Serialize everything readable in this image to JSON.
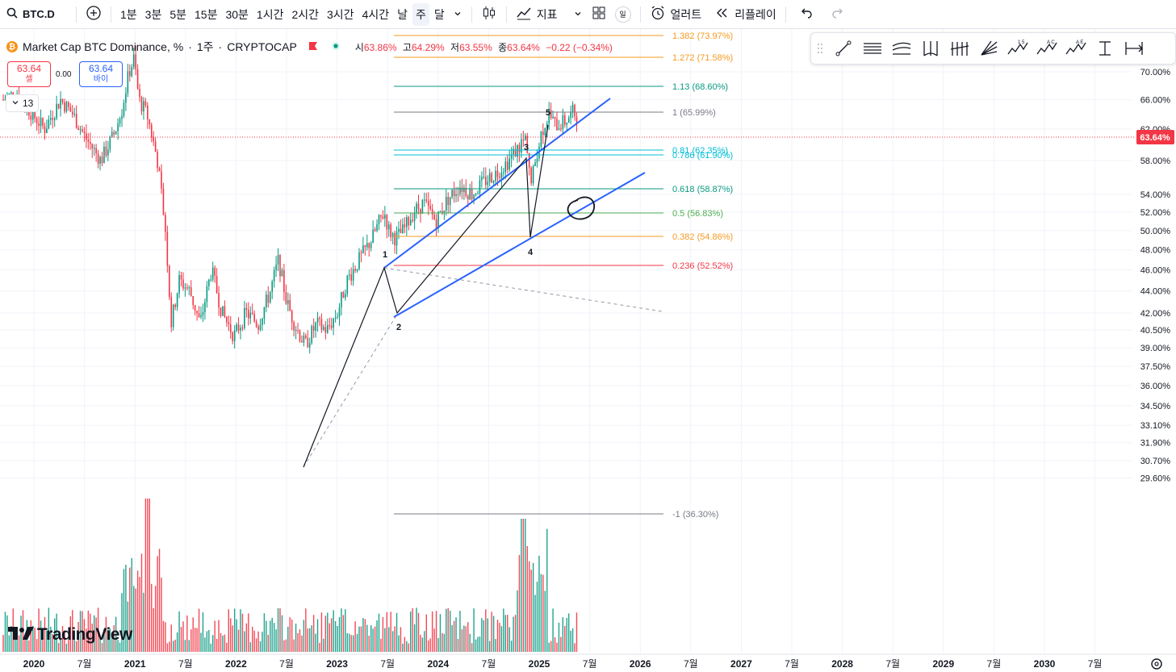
{
  "toolbar": {
    "symbol": "BTC.D",
    "intervals": [
      "1분",
      "3분",
      "5분",
      "15분",
      "30분",
      "1시간",
      "2시간",
      "3시간",
      "4시간",
      "날",
      "주",
      "달"
    ],
    "active_interval": "주",
    "indicators_label": "지표",
    "layout_badge": "일",
    "alert_label": "얼러트",
    "replay_label": "리플레이"
  },
  "legend": {
    "title": "Market Cap BTC Dominance, %",
    "interval": "1주",
    "source": "CRYPTOCAP",
    "open_label": "시",
    "open": "63.86%",
    "high_label": "고",
    "high": "64.29%",
    "low_label": "저",
    "low": "63.55%",
    "close_label": "종",
    "close": "63.64%",
    "change": "−0.22 (−0.34%)"
  },
  "trade": {
    "sell_price": "63.64",
    "sell_label": "셀",
    "spread": "0.00",
    "buy_price": "63.64",
    "buy_label": "바이",
    "indicator_count": "13"
  },
  "current_price_label": "63.64%",
  "price_axis": {
    "ticks": [
      {
        "v": 70.0,
        "t": "70.00%"
      },
      {
        "v": 66.0,
        "t": "66.00%"
      },
      {
        "v": 62.0,
        "t": "62.00%"
      },
      {
        "v": 58.0,
        "t": "58.00%"
      },
      {
        "v": 54.0,
        "t": "54.00%"
      },
      {
        "v": 52.0,
        "t": "52.00%"
      },
      {
        "v": 50.0,
        "t": "50.00%"
      },
      {
        "v": 48.0,
        "t": "48.00%"
      },
      {
        "v": 46.0,
        "t": "46.00%"
      },
      {
        "v": 44.0,
        "t": "44.00%"
      },
      {
        "v": 42.0,
        "t": "42.00%"
      },
      {
        "v": 40.5,
        "t": "40.50%"
      },
      {
        "v": 39.0,
        "t": "39.00%"
      },
      {
        "v": 37.5,
        "t": "37.50%"
      },
      {
        "v": 36.0,
        "t": "36.00%"
      },
      {
        "v": 34.5,
        "t": "34.50%"
      },
      {
        "v": 33.1,
        "t": "33.10%"
      },
      {
        "v": 31.9,
        "t": "31.90%"
      },
      {
        "v": 30.7,
        "t": "30.70%"
      },
      {
        "v": 29.6,
        "t": "29.60%"
      }
    ]
  },
  "time_axis": {
    "ticks": [
      "2020",
      "7월",
      "2021",
      "7월",
      "2022",
      "7월",
      "2023",
      "7월",
      "2024",
      "7월",
      "2025",
      "7월",
      "2026",
      "7월",
      "2027",
      "7월",
      "2028",
      "7월",
      "2029",
      "7월",
      "2030",
      "7월"
    ],
    "bold": [
      "2020",
      "2021",
      "2022",
      "2023",
      "2024",
      "2025",
      "2026",
      "2027",
      "2028",
      "2029",
      "2030"
    ]
  },
  "fib_levels": [
    {
      "label": "1.382 (73.97%)",
      "color": "#f59a23"
    },
    {
      "label": "1.272 (71.58%)",
      "color": "#f59a23"
    },
    {
      "label": "1.13 (68.60%)",
      "color": "#089981"
    },
    {
      "label": "1 (65.99%)",
      "color": "#787b86"
    },
    {
      "label": "0.81 (62.35%)",
      "color": "#00bcd4"
    },
    {
      "label": "0.786 (61.90%)",
      "color": "#00bcd4"
    },
    {
      "label": "0.618 (58.87%)",
      "color": "#089981"
    },
    {
      "label": "0.5 (56.83%)",
      "color": "#4caf50"
    },
    {
      "label": "0.382 (54.86%)",
      "color": "#f59a23"
    },
    {
      "label": "0.236 (52.52%)",
      "color": "#f23645"
    },
    {
      "label": "-1 (36.30%)",
      "color": "#787b86"
    }
  ],
  "wave_labels": [
    "1",
    "2",
    "3",
    "4",
    "5"
  ],
  "colors": {
    "up": "#089981",
    "down": "#f23645",
    "accent": "#2962ff",
    "channel": "#2962ff"
  },
  "branding": "TradingView"
}
